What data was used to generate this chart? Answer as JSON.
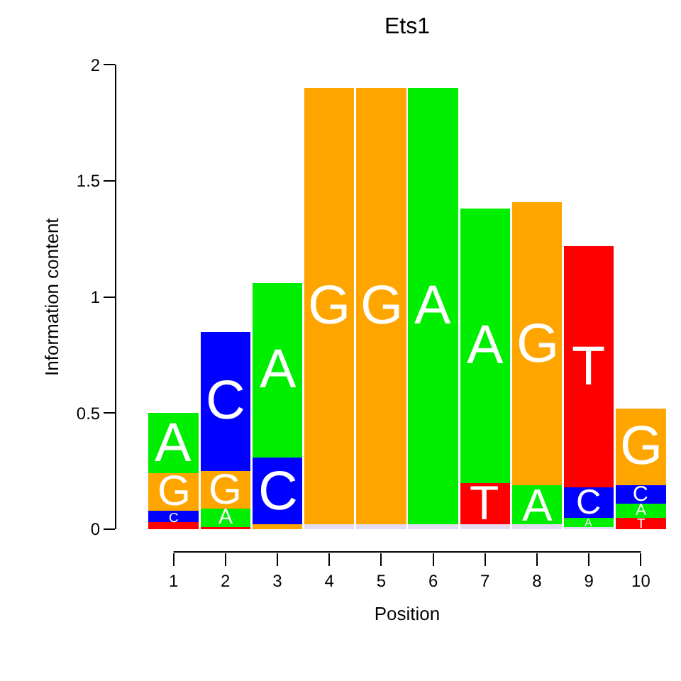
{
  "chart_data": {
    "type": "bar",
    "title": "Ets1",
    "xlabel": "Position",
    "ylabel": "Information content",
    "categories": [
      "1",
      "2",
      "3",
      "4",
      "5",
      "6",
      "7",
      "8",
      "9",
      "10"
    ],
    "stacked": true,
    "ylim": [
      0,
      2
    ],
    "yticks": [
      0,
      0.5,
      1,
      1.5,
      2
    ],
    "series": [
      {
        "colors": [
          "#ff0000",
          "#ff0000",
          "#ffa500",
          "#e4dcf0",
          "#e4dcf0",
          "#e4dcf0",
          "#e4dcf0",
          "#e4dcf0",
          "#e4dcf0",
          "#ff0000"
        ],
        "values": [
          0.03,
          0.01,
          0.02,
          0.02,
          0.02,
          0.02,
          0.02,
          0.02,
          0.01,
          0.05
        ],
        "value_labels": [
          null,
          null,
          null,
          null,
          null,
          null,
          null,
          null,
          null,
          "T"
        ]
      },
      {
        "colors": [
          "#0000ff",
          "#00ee00",
          "#0000ff",
          "#ffa500",
          "#ffa500",
          "#00ee00",
          "#ff0000",
          "#00ee00",
          "#00ee00",
          "#00ee00"
        ],
        "values": [
          0.05,
          0.08,
          0.29,
          1.88,
          1.88,
          1.88,
          0.18,
          0.17,
          0.04,
          0.06
        ],
        "value_labels": [
          "C",
          "A",
          "C",
          "G",
          "G",
          "A",
          "T",
          "A",
          "A",
          "A"
        ]
      },
      {
        "colors": [
          "#ffa500",
          "#ffa500",
          "#00ee00",
          null,
          null,
          null,
          "#00ee00",
          "#ffa500",
          "#0000ff",
          "#0000ff"
        ],
        "values": [
          0.16,
          0.16,
          0.75,
          null,
          null,
          null,
          1.18,
          1.22,
          0.13,
          0.08
        ],
        "value_labels": [
          "G",
          "G",
          "A",
          null,
          null,
          null,
          "A",
          "G",
          "C",
          "C"
        ]
      },
      {
        "colors": [
          "#00ee00",
          "#0000ff",
          null,
          null,
          null,
          null,
          null,
          null,
          "#ff0000",
          "#ffa500"
        ],
        "values": [
          0.26,
          0.6,
          null,
          null,
          null,
          null,
          null,
          null,
          1.04,
          0.33
        ],
        "value_labels": [
          "A",
          "C",
          null,
          null,
          null,
          null,
          null,
          null,
          "T",
          "G"
        ]
      }
    ]
  }
}
